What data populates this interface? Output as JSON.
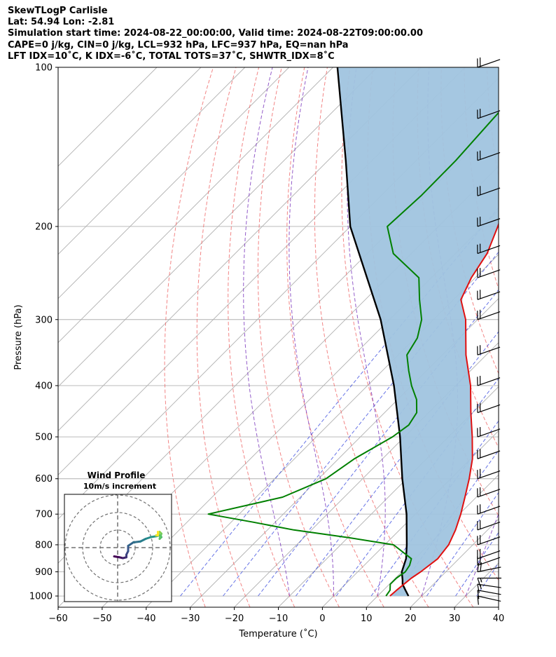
{
  "header": {
    "lines": [
      "SkewTLogP Carlisle",
      "Lat: 54.94   Lon: -2.81",
      "Simulation start time: 2024-08-22_00:00:00, Valid time: 2024-08-22T09:00:00.00",
      "CAPE=0 j/kg, CIN=0 j/kg, LCL=932 hPa, LFC=937 hPa, EQ=nan hPa",
      "LFT IDX=10˚C, K IDX=-6˚C, TOTAL TOTS=37˚C, SHWTR_IDX=8˚C"
    ]
  },
  "chart_data": {
    "type": "skewt-logp",
    "xlabel": "Temperature (˚C)",
    "ylabel": "Pressure (hPa)",
    "xlim": [
      -60,
      40
    ],
    "ylim": [
      1050,
      100
    ],
    "y_scale": "log",
    "grid": true,
    "x_ticks": [
      "−60",
      "−50",
      "−40",
      "−30",
      "−20",
      "−10",
      "0",
      "10",
      "20",
      "30",
      "40"
    ],
    "y_ticks": [
      "100",
      "200",
      "300",
      "400",
      "500",
      "600",
      "700",
      "800",
      "900",
      "1000"
    ],
    "colors": {
      "temperature": "#e01010",
      "dewpoint": "#008000",
      "parcel": "#000000",
      "cape_fill": "#a0c4df",
      "dry_adiabat": "#f07070",
      "moist_adiabat": "#8040c0",
      "mixing_ratio": "#4050e0"
    },
    "temperature": {
      "pressure": [
        1000,
        975,
        950,
        925,
        900,
        850,
        800,
        750,
        700,
        650,
        600,
        550,
        500,
        450,
        400,
        350,
        300,
        275,
        250,
        225,
        200,
        175,
        150,
        125,
        100
      ],
      "temp_c": [
        12.8,
        13.0,
        13.3,
        13.6,
        14.3,
        15.2,
        14.5,
        12.7,
        10.3,
        7.4,
        4.2,
        0.4,
        -4.6,
        -10.4,
        -16.6,
        -24.6,
        -32.7,
        -38.3,
        -40.9,
        -42.8,
        -46.5,
        -51.0,
        -56.7,
        -58.6,
        -60.6
      ]
    },
    "dewpoint": {
      "pressure": [
        1000,
        975,
        950,
        925,
        900,
        875,
        850,
        800,
        775,
        750,
        725,
        700,
        650,
        600,
        550,
        500,
        475,
        450,
        425,
        400,
        375,
        350,
        325,
        300,
        275,
        250,
        225,
        200,
        175,
        150,
        125,
        100
      ],
      "dewpoint_c": [
        11.9,
        11.5,
        10.2,
        10.2,
        10.8,
        10.3,
        9.2,
        2.0,
        -10.0,
        -24.0,
        -35.0,
        -47.0,
        -34.0,
        -28.3,
        -26.4,
        -22.7,
        -21.7,
        -22.7,
        -25.7,
        -30.0,
        -34.0,
        -38.0,
        -39.5,
        -42.7,
        -47.7,
        -52.8,
        -64.1,
        -71.6,
        -70.9,
        -71.0,
        -72.0,
        -73.0
      ]
    },
    "parcel": {
      "pressure": [
        1000,
        975,
        950,
        932,
        900,
        850,
        800,
        700,
        600,
        500,
        400,
        300,
        200,
        150,
        100
      ],
      "temp_c": [
        17.0,
        15.0,
        13.0,
        12.0,
        10.0,
        8.0,
        5.0,
        -2.0,
        -11.0,
        -21.0,
        -34.0,
        -52.0,
        -80.0,
        -96.0,
        -119.0
      ]
    },
    "wind_barbs": {
      "pressure": [
        1000,
        975,
        950,
        925,
        900,
        875,
        850,
        800,
        750,
        700,
        650,
        600,
        550,
        500,
        450,
        400,
        350,
        300,
        275,
        250,
        225,
        200,
        175,
        150,
        125,
        100
      ],
      "u_kt": [
        9,
        11,
        14,
        16,
        20,
        20,
        20,
        20,
        20,
        20,
        20,
        20,
        20,
        20,
        20,
        20,
        20,
        20,
        20,
        20,
        20,
        20,
        20,
        20,
        20,
        20
      ],
      "v_kt": [
        -2,
        -2,
        -2,
        0,
        4,
        7,
        7,
        7,
        7,
        7,
        7,
        7,
        7,
        7,
        7,
        7,
        7,
        7,
        7,
        7,
        7,
        7,
        7,
        7,
        7,
        7
      ]
    },
    "hodograph": {
      "title": "Wind Profile",
      "subtitle": "10m/s increment",
      "ring_step_ms": 10,
      "u_ms": [
        -2,
        1,
        3,
        5,
        5,
        6,
        6,
        9,
        13,
        16,
        19,
        22,
        24,
        25,
        24,
        25,
        24,
        23,
        22,
        23,
        23
      ],
      "v_ms": [
        -5,
        -5.5,
        -6,
        -5.5,
        -4,
        -2,
        1,
        3,
        3.5,
        5,
        6,
        6.5,
        7,
        6,
        5,
        8,
        9,
        7,
        7,
        7,
        9
      ]
    }
  }
}
